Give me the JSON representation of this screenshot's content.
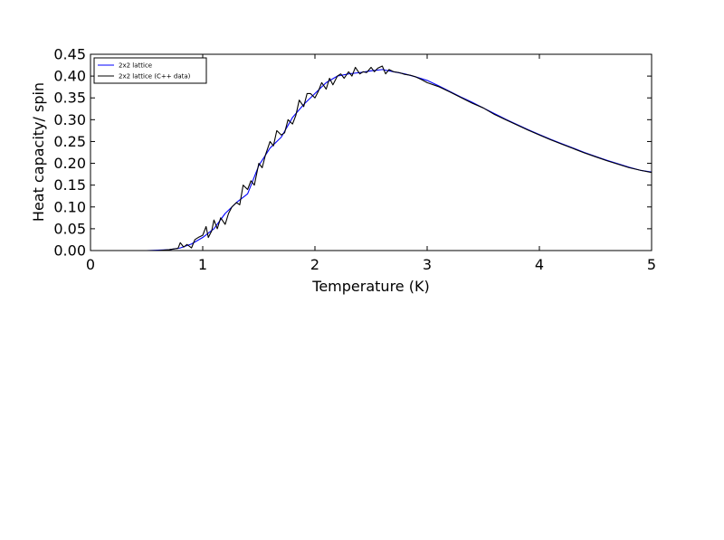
{
  "chart_data": {
    "type": "line",
    "title": "",
    "xlabel": "Temperature (K)",
    "ylabel": "Heat capacity/ spin",
    "xlim": [
      0,
      5
    ],
    "ylim": [
      0,
      0.45
    ],
    "xticks": [
      0,
      1,
      2,
      3,
      4,
      5
    ],
    "xtick_labels": [
      "0",
      "1",
      "2",
      "3",
      "4",
      "5"
    ],
    "yticks": [
      0,
      0.05,
      0.1,
      0.15,
      0.2,
      0.25,
      0.3,
      0.35,
      0.4,
      0.45
    ],
    "ytick_labels": [
      "0.00",
      "0.05",
      "0.10",
      "0.15",
      "0.20",
      "0.25",
      "0.30",
      "0.35",
      "0.40",
      "0.45"
    ],
    "grid": false,
    "legend": "top-left",
    "series": [
      {
        "name": "2x2 lattice",
        "color": "#0000ff",
        "x": [
          0.25,
          0.5,
          0.6,
          0.7,
          0.8,
          0.9,
          1.0,
          1.1,
          1.2,
          1.3,
          1.4,
          1.5,
          1.6,
          1.7,
          1.8,
          1.9,
          2.0,
          2.1,
          2.2,
          2.3,
          2.4,
          2.5,
          2.6,
          2.7,
          2.8,
          2.9,
          3.0,
          3.1,
          3.2,
          3.3,
          3.4,
          3.5,
          3.6,
          3.7,
          3.8,
          3.9,
          4.0,
          4.1,
          4.2,
          4.3,
          4.4,
          4.5,
          4.6,
          4.7,
          4.8,
          4.9,
          5.0
        ],
        "y": [
          0.0,
          0.0,
          0.001,
          0.002,
          0.006,
          0.015,
          0.03,
          0.05,
          0.085,
          0.11,
          0.13,
          0.195,
          0.235,
          0.26,
          0.305,
          0.335,
          0.36,
          0.385,
          0.4,
          0.405,
          0.408,
          0.412,
          0.415,
          0.41,
          0.405,
          0.398,
          0.39,
          0.378,
          0.365,
          0.352,
          0.34,
          0.327,
          0.314,
          0.301,
          0.289,
          0.277,
          0.266,
          0.255,
          0.245,
          0.235,
          0.225,
          0.216,
          0.207,
          0.199,
          0.191,
          0.184,
          0.18
        ]
      },
      {
        "name": "2x2 lattice (C++ data)",
        "color": "#000000",
        "x": [
          0.5,
          0.55,
          0.6,
          0.65,
          0.7,
          0.75,
          0.78,
          0.8,
          0.83,
          0.86,
          0.9,
          0.93,
          0.96,
          1.0,
          1.03,
          1.05,
          1.08,
          1.1,
          1.13,
          1.16,
          1.2,
          1.23,
          1.26,
          1.3,
          1.33,
          1.36,
          1.4,
          1.43,
          1.46,
          1.5,
          1.53,
          1.56,
          1.6,
          1.63,
          1.66,
          1.7,
          1.73,
          1.76,
          1.8,
          1.83,
          1.86,
          1.9,
          1.93,
          1.96,
          2.0,
          2.03,
          2.06,
          2.1,
          2.13,
          2.16,
          2.2,
          2.23,
          2.26,
          2.3,
          2.33,
          2.36,
          2.4,
          2.43,
          2.46,
          2.5,
          2.53,
          2.56,
          2.6,
          2.63,
          2.66,
          2.7,
          2.75,
          2.8,
          2.85,
          2.9,
          2.95,
          3.0,
          3.1,
          3.2,
          3.3,
          3.4,
          3.5,
          3.6,
          3.7,
          3.8,
          3.9,
          4.0,
          4.1,
          4.2,
          4.3,
          4.4,
          4.5,
          4.6,
          4.7,
          4.8,
          4.9,
          5.0
        ],
        "y": [
          0.0,
          0.0,
          0.0,
          0.001,
          0.002,
          0.004,
          0.005,
          0.018,
          0.008,
          0.014,
          0.006,
          0.025,
          0.03,
          0.035,
          0.055,
          0.03,
          0.045,
          0.07,
          0.05,
          0.075,
          0.06,
          0.085,
          0.1,
          0.11,
          0.105,
          0.15,
          0.14,
          0.16,
          0.15,
          0.2,
          0.19,
          0.22,
          0.25,
          0.24,
          0.275,
          0.265,
          0.27,
          0.3,
          0.29,
          0.31,
          0.345,
          0.33,
          0.36,
          0.36,
          0.35,
          0.365,
          0.385,
          0.37,
          0.395,
          0.38,
          0.4,
          0.405,
          0.395,
          0.41,
          0.4,
          0.42,
          0.405,
          0.41,
          0.408,
          0.42,
          0.41,
          0.418,
          0.423,
          0.405,
          0.415,
          0.41,
          0.408,
          0.404,
          0.402,
          0.398,
          0.392,
          0.385,
          0.376,
          0.364,
          0.351,
          0.338,
          0.327,
          0.312,
          0.3,
          0.288,
          0.276,
          0.265,
          0.254,
          0.244,
          0.234,
          0.224,
          0.215,
          0.206,
          0.198,
          0.19,
          0.184,
          0.179
        ]
      }
    ]
  }
}
